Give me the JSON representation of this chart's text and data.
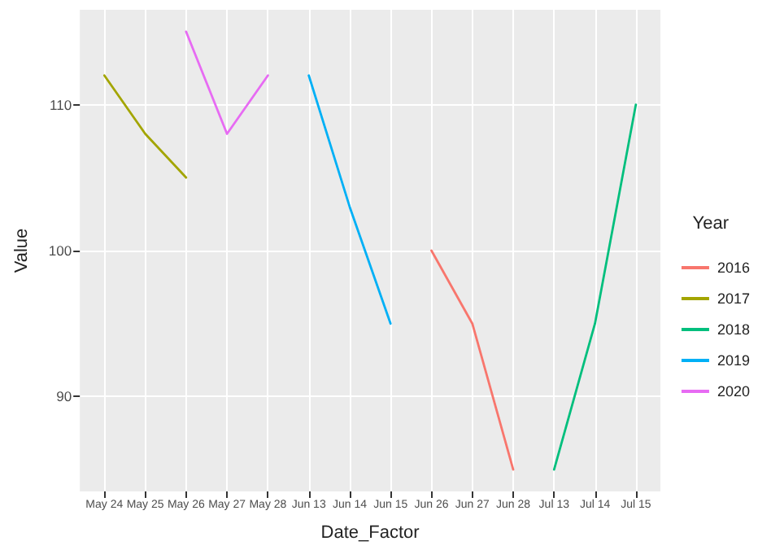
{
  "chart_data": {
    "type": "line",
    "xlabel": "Date_Factor",
    "ylabel": "Value",
    "legend_title": "Year",
    "categories": [
      "May 24",
      "May 25",
      "May 26",
      "May 27",
      "May 28",
      "Jun 13",
      "Jun 14",
      "Jun 15",
      "Jun 26",
      "Jun 27",
      "Jun 28",
      "Jul 13",
      "Jul 14",
      "Jul 15"
    ],
    "series": [
      {
        "name": "2016",
        "color": "#f8766d",
        "values": [
          null,
          null,
          null,
          null,
          null,
          null,
          null,
          null,
          100,
          95,
          85,
          null,
          null,
          null
        ]
      },
      {
        "name": "2017",
        "color": "#a3a500",
        "values": [
          112,
          108,
          105,
          null,
          null,
          null,
          null,
          null,
          null,
          null,
          null,
          null,
          null,
          null
        ]
      },
      {
        "name": "2018",
        "color": "#00bf7d",
        "values": [
          null,
          null,
          null,
          null,
          null,
          null,
          null,
          null,
          null,
          null,
          null,
          85,
          95,
          110
        ]
      },
      {
        "name": "2019",
        "color": "#00b0f6",
        "values": [
          null,
          null,
          null,
          null,
          null,
          112,
          103,
          95,
          null,
          null,
          null,
          null,
          null,
          null
        ]
      },
      {
        "name": "2020",
        "color": "#e76bf3",
        "values": [
          null,
          null,
          115,
          108,
          112,
          null,
          null,
          null,
          null,
          null,
          null,
          null,
          null,
          null
        ]
      }
    ],
    "ylim": [
      83.5,
      116.5
    ],
    "yticks": [
      90,
      100,
      110
    ],
    "grid": true,
    "legend": "right",
    "marker": "none",
    "line_style": "solid"
  }
}
